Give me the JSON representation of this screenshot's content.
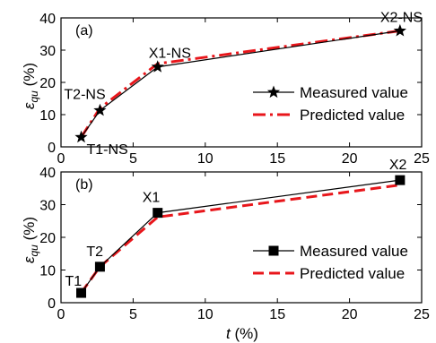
{
  "figure": {
    "xlabel": "t (%)",
    "xlabel_var": "t",
    "xlabel_unit": " (%)",
    "ylabel_var": "ε",
    "ylabel_sub": "qu",
    "ylabel_unit": " (%)"
  },
  "chart_data": [
    {
      "type": "line",
      "panel_label": "(a)",
      "xlim": [
        0,
        25
      ],
      "ylim": [
        0,
        40
      ],
      "xticks": [
        0,
        5,
        10,
        15,
        20,
        25
      ],
      "yticks": [
        0,
        10,
        20,
        30,
        40
      ],
      "legend_position": "right",
      "series": [
        {
          "name": "Measured value",
          "marker": "star",
          "color": "#000000",
          "style": "solid",
          "x": [
            1.4,
            2.7,
            6.7,
            23.5
          ],
          "y": [
            3.0,
            11.3,
            24.8,
            36.0
          ]
        },
        {
          "name": "Predicted value",
          "color": "#e8161b",
          "style": "dash-dot",
          "x": [
            1.4,
            2.7,
            6.7,
            23.5
          ],
          "y": [
            3.0,
            12.0,
            25.8,
            36.0
          ]
        }
      ],
      "annotations": [
        {
          "text": "T1-NS",
          "x": 1.4,
          "y": 3.0
        },
        {
          "text": "T2-NS",
          "x": 2.7,
          "y": 11.3
        },
        {
          "text": "X1-NS",
          "x": 6.7,
          "y": 24.8
        },
        {
          "text": "X2-NS",
          "x": 23.5,
          "y": 36.0
        }
      ]
    },
    {
      "type": "line",
      "panel_label": "(b)",
      "xlim": [
        0,
        25
      ],
      "ylim": [
        0,
        40
      ],
      "xticks": [
        0,
        5,
        10,
        15,
        20,
        25
      ],
      "yticks": [
        0,
        10,
        20,
        30,
        40
      ],
      "legend_position": "right",
      "series": [
        {
          "name": "Measured value",
          "marker": "square",
          "color": "#000000",
          "style": "solid",
          "x": [
            1.4,
            2.7,
            6.7,
            23.5
          ],
          "y": [
            3.0,
            11.0,
            27.5,
            37.5
          ]
        },
        {
          "name": "Predicted value",
          "color": "#e8161b",
          "style": "dashed",
          "x": [
            1.4,
            2.7,
            6.7,
            23.5
          ],
          "y": [
            3.0,
            11.0,
            26.2,
            36.0
          ]
        }
      ],
      "annotations": [
        {
          "text": "T1",
          "x": 1.4,
          "y": 3.0
        },
        {
          "text": "T2",
          "x": 2.7,
          "y": 11.0
        },
        {
          "text": "X1",
          "x": 6.7,
          "y": 27.5
        },
        {
          "text": "X2",
          "x": 23.5,
          "y": 37.5
        }
      ]
    }
  ]
}
